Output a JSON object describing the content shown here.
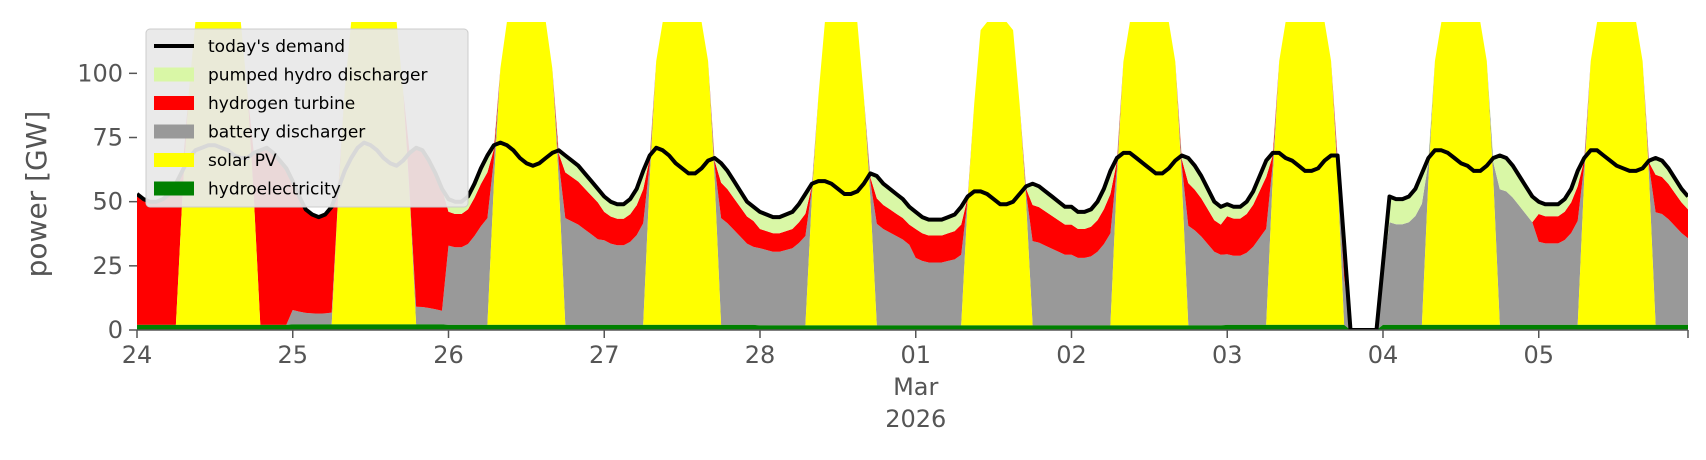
{
  "chart_data": {
    "type": "area",
    "title": "",
    "xlabel": "",
    "ylabel": "power [GW]",
    "ylim": [
      0,
      120
    ],
    "xlim": [
      "2026-02-24 00:00",
      "2026-03-05 23:00"
    ],
    "yticks": [
      0,
      25,
      50,
      75,
      100
    ],
    "xticks": [
      {
        "x": "2026-02-24",
        "label": "24"
      },
      {
        "x": "2026-02-25",
        "label": "25"
      },
      {
        "x": "2026-02-26",
        "label": "26"
      },
      {
        "x": "2026-02-27",
        "label": "27"
      },
      {
        "x": "2026-02-28",
        "label": "28"
      },
      {
        "x": "2026-03-01",
        "label": "01\nMar\n2026"
      },
      {
        "x": "2026-03-02",
        "label": "02"
      },
      {
        "x": "2026-03-03",
        "label": "03"
      },
      {
        "x": "2026-03-04",
        "label": "04"
      },
      {
        "x": "2026-03-05",
        "label": "05"
      }
    ],
    "grid": false,
    "legend": "top-left",
    "series_stack_order": [
      "hydroelectricity",
      "solar PV",
      "battery discharger",
      "hydrogen turbine",
      "pumped hydro discharger"
    ],
    "colors": {
      "hydroelectricity": "#008000",
      "solar PV": "#ffff00",
      "battery discharger": "#999999",
      "hydrogen turbine": "#ff0000",
      "pumped hydro discharger": "#d9f7a6",
      "today's demand": "#000000"
    },
    "day_profiles": [
      {
        "day": "2026-02-24",
        "demand": [
          53,
          51,
          50,
          50,
          51,
          53,
          57,
          62,
          67,
          70,
          71,
          72,
          72,
          71,
          70,
          68,
          67,
          67,
          69,
          70,
          71,
          69,
          66,
          63
        ],
        "hydro": 2.0,
        "solar_peak": 175,
        "solar_start": 6,
        "solar_end": 19,
        "battery_day": false,
        "h2_share": 1.0,
        "ph_share": 0.0
      },
      {
        "day": "2026-02-25",
        "demand": [
          58,
          52,
          47,
          45,
          44,
          45,
          48,
          55,
          62,
          67,
          71,
          73,
          72,
          70,
          67,
          65,
          64,
          66,
          69,
          71,
          70,
          66,
          61,
          55
        ],
        "hydro": 2.2,
        "solar_peak": 175,
        "solar_start": 6,
        "solar_end": 19,
        "battery_day": true,
        "h2_share": 0.9,
        "ph_share": 0.0
      },
      {
        "day": "2026-02-26",
        "demand": [
          51,
          50,
          50,
          52,
          57,
          63,
          68,
          72,
          73,
          72,
          70,
          67,
          65,
          64,
          65,
          67,
          69,
          70,
          68,
          66,
          64,
          61,
          58,
          55
        ],
        "hydro": 2.0,
        "solar_peak": 180,
        "solar_start": 6,
        "solar_end": 18,
        "battery_day": true,
        "h2_share": 0.3,
        "ph_share": 0.1
      },
      {
        "day": "2026-02-27",
        "demand": [
          52,
          50,
          49,
          49,
          51,
          55,
          62,
          68,
          71,
          70,
          68,
          65,
          63,
          61,
          61,
          63,
          66,
          67,
          65,
          62,
          58,
          54,
          50,
          48
        ],
        "hydro": 2.0,
        "solar_peak": 185,
        "solar_start": 6,
        "solar_end": 18,
        "battery_day": true,
        "h2_share": 0.25,
        "ph_share": 0.12
      },
      {
        "day": "2026-02-28",
        "demand": [
          46,
          45,
          44,
          44,
          45,
          46,
          49,
          53,
          57,
          58,
          58,
          57,
          55,
          53,
          53,
          54,
          57,
          61,
          60,
          57,
          55,
          53,
          51,
          48
        ],
        "hydro": 1.8,
        "solar_peak": 150,
        "solar_start": 7,
        "solar_end": 18,
        "battery_day": true,
        "h2_share": 0.2,
        "ph_share": 0.15
      },
      {
        "day": "2026-03-01",
        "demand": [
          46,
          44,
          43,
          43,
          43,
          44,
          45,
          48,
          52,
          54,
          54,
          53,
          51,
          49,
          49,
          50,
          53,
          56,
          57,
          56,
          54,
          52,
          50,
          48
        ],
        "hydro": 1.8,
        "solar_peak": 145,
        "solar_start": 7,
        "solar_end": 18,
        "battery_day": true,
        "h2_share": 0.3,
        "ph_share": 0.15
      },
      {
        "day": "2026-03-02",
        "demand": [
          48,
          46,
          46,
          47,
          50,
          55,
          62,
          67,
          69,
          69,
          67,
          65,
          63,
          61,
          61,
          63,
          66,
          68,
          67,
          64,
          60,
          55,
          50,
          48
        ],
        "hydro": 1.8,
        "solar_peak": 185,
        "solar_start": 6,
        "solar_end": 18,
        "battery_day": true,
        "h2_share": 0.3,
        "ph_share": 0.15
      },
      {
        "day": "2026-03-03",
        "demand": [
          49,
          48,
          48,
          50,
          54,
          60,
          66,
          69,
          69,
          67,
          66,
          64,
          62,
          62,
          63,
          66,
          68,
          68,
          34,
          0,
          0,
          0,
          0,
          0
        ],
        "hydro": 2.0,
        "solar_peak": 185,
        "solar_start": 6,
        "solar_end": 18,
        "battery_day": true,
        "h2_share": 0.35,
        "ph_share": 0.1
      },
      {
        "day": "2026-03-04",
        "demand": [
          26,
          52,
          51,
          51,
          52,
          55,
          61,
          67,
          70,
          70,
          69,
          67,
          65,
          64,
          62,
          62,
          64,
          67,
          68,
          67,
          64,
          60,
          56,
          52
        ],
        "hydro": 2.0,
        "solar_peak": 185,
        "solar_start": 6,
        "solar_end": 18,
        "battery_day": true,
        "h2_share": 0.0,
        "ph_share": 0.2
      },
      {
        "day": "2026-03-05",
        "demand": [
          50,
          49,
          49,
          49,
          51,
          55,
          62,
          67,
          70,
          70,
          68,
          66,
          64,
          63,
          62,
          62,
          63,
          66,
          67,
          66,
          63,
          59,
          55,
          52
        ],
        "hydro": 2.0,
        "solar_peak": 185,
        "solar_start": 6,
        "solar_end": 18,
        "battery_day": true,
        "h2_share": 0.25,
        "ph_share": 0.1
      }
    ],
    "series": [
      {
        "name": "today's demand",
        "kind": "line"
      },
      {
        "name": "pumped hydro discharger",
        "kind": "area"
      },
      {
        "name": "hydrogen turbine",
        "kind": "area"
      },
      {
        "name": "battery discharger",
        "kind": "area"
      },
      {
        "name": "solar PV",
        "kind": "area"
      },
      {
        "name": "hydroelectricity",
        "kind": "area"
      }
    ]
  }
}
